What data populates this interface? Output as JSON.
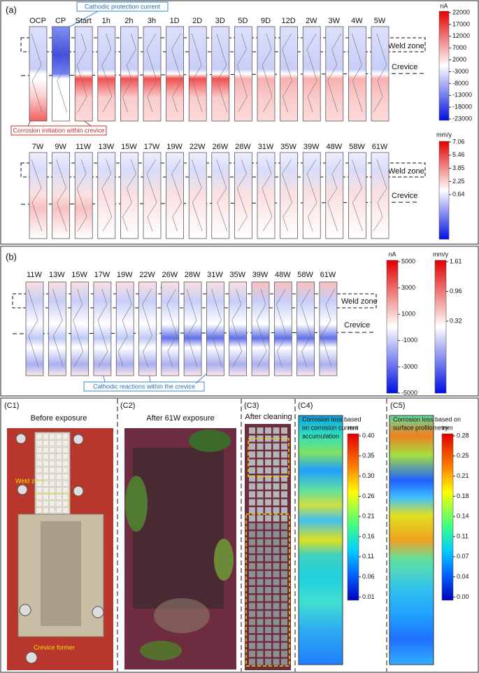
{
  "panel_a": {
    "label": "(a)",
    "callout_top": "Cathodic protection current",
    "callout_bottom": "Corrosion initiation within crevice",
    "weld_zone": "Weld zone",
    "crevice": "Crevice",
    "row1_labels": [
      "OCP",
      "CP",
      "Start",
      "1h",
      "2h",
      "3h",
      "1D",
      "2D",
      "3D",
      "5D",
      "9D",
      "12D",
      "2W",
      "3W",
      "4W",
      "5W"
    ],
    "row2_labels": [
      "7W",
      "9W",
      "11W",
      "13W",
      "15W",
      "17W",
      "19W",
      "22W",
      "26W",
      "28W",
      "31W",
      "35W",
      "39W",
      "48W",
      "58W",
      "61W"
    ],
    "weld_zone_2": "Weld zone",
    "crevice_2": "Crevice",
    "colorbar1": {
      "unit": "nA",
      "ticks": [
        "22000",
        "17000",
        "12000",
        "7000",
        "2000",
        "-3000",
        "-8000",
        "-13000",
        "-18000",
        "-23000"
      ]
    },
    "colorbar2": {
      "unit": "mm/y",
      "ticks": [
        "7.06",
        "5.46",
        "3.85",
        "2.25",
        "0.64"
      ]
    }
  },
  "panel_b": {
    "label": "(b)",
    "labels": [
      "11W",
      "13W",
      "15W",
      "17W",
      "19W",
      "22W",
      "26W",
      "28W",
      "31W",
      "35W",
      "39W",
      "48W",
      "58W",
      "61W"
    ],
    "weld_zone": "Weld zone",
    "crevice": "Crevice",
    "callout": "Cathodic reactions within the crevice",
    "colorbar1": {
      "unit": "nA",
      "ticks": [
        "5000",
        "3000",
        "1000",
        "-1000",
        "-3000",
        "-5000"
      ]
    },
    "colorbar2": {
      "unit": "mm/y",
      "ticks": [
        "1.61",
        "0.96",
        "0.32"
      ]
    }
  },
  "panel_c": {
    "c1": {
      "label": "(C1)",
      "title": "Before exposure",
      "weld_zone": "Weld zone",
      "crevice_former": "Crevice former"
    },
    "c2": {
      "label": "(C2)",
      "title": "After 61W exposure"
    },
    "c3": {
      "label": "(C3)",
      "title": "After cleaning"
    },
    "c4": {
      "label": "(C4)",
      "title": [
        "Corrosion loss based",
        "on corrosion current",
        "accumulation"
      ],
      "colorbar": {
        "unit": "mm",
        "ticks": [
          "0.40",
          "0.35",
          "0.30",
          "0.26",
          "0.21",
          "0.16",
          "0.11",
          "0.06",
          "0.01"
        ]
      }
    },
    "c5": {
      "label": "(C5)",
      "title": [
        "Corrosion loss based on",
        "surface profilometry"
      ],
      "colorbar": {
        "unit": "mm",
        "ticks": [
          "0.28",
          "0.25",
          "0.21",
          "0.18",
          "0.14",
          "0.11",
          "0.07",
          "0.04",
          "0.00"
        ]
      }
    }
  }
}
